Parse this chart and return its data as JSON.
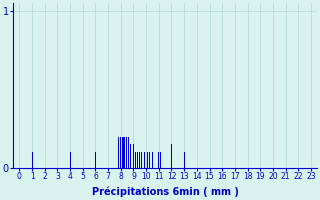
{
  "xlabel": "Précipitations 6min ( mm )",
  "xlim": [
    -0.5,
    23.5
  ],
  "ylim": [
    0,
    1.05
  ],
  "yticks": [
    0,
    1
  ],
  "xticks": [
    0,
    1,
    2,
    3,
    4,
    5,
    6,
    7,
    8,
    9,
    10,
    11,
    12,
    13,
    14,
    15,
    16,
    17,
    18,
    19,
    20,
    21,
    22,
    23
  ],
  "background_color": "#d8f2ee",
  "bar_color": "#0000cc",
  "grid_color": "#b8ddd8",
  "bars": [
    [
      1,
      0.1
    ],
    [
      4,
      0.1
    ],
    [
      6,
      0.1
    ],
    [
      7.85,
      0.2
    ],
    [
      8.0,
      0.2
    ],
    [
      8.1,
      0.2
    ],
    [
      8.2,
      0.2
    ],
    [
      8.3,
      0.2
    ],
    [
      8.45,
      0.2
    ],
    [
      8.6,
      0.2
    ],
    [
      8.75,
      0.15
    ],
    [
      9.0,
      0.15
    ],
    [
      9.15,
      0.1
    ],
    [
      9.3,
      0.1
    ],
    [
      9.45,
      0.1
    ],
    [
      9.6,
      0.1
    ],
    [
      9.75,
      0.1
    ],
    [
      9.9,
      0.1
    ],
    [
      10.1,
      0.1
    ],
    [
      10.3,
      0.1
    ],
    [
      10.5,
      0.1
    ],
    [
      11.0,
      0.1
    ],
    [
      11.15,
      0.1
    ],
    [
      12.0,
      0.15
    ],
    [
      13.0,
      0.1
    ]
  ],
  "xlabel_fontsize": 7,
  "tick_fontsize": 5.5,
  "ytick_fontsize": 7
}
